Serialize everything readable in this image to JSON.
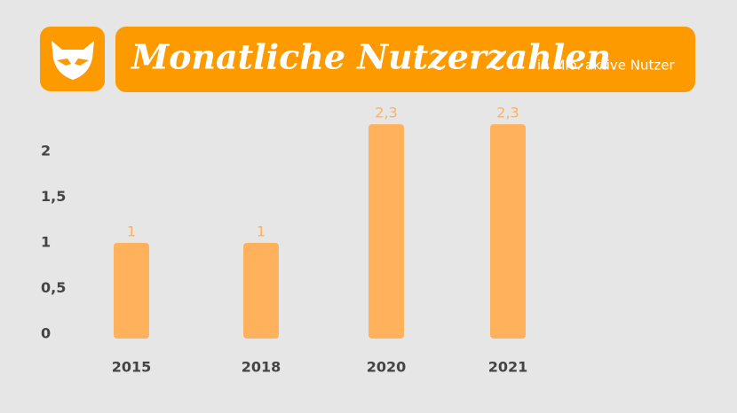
{
  "chart_data": {
    "type": "bar",
    "title": "Monatliche Nutzerzahlen",
    "subtitle": "in Mio. aktive Nutzer",
    "categories": [
      "2015",
      "2018",
      "2020",
      "2021"
    ],
    "values": [
      1,
      1,
      2.3,
      2.3
    ],
    "value_labels": [
      "1",
      "1",
      "2,3",
      "2,3"
    ],
    "color": "#ffb15c",
    "ylim": [
      0,
      2
    ],
    "yticks": [
      0,
      {
        "value": 0.5,
        "label": "0,5"
      },
      1,
      {
        "value": 1.5,
        "label": "1,5"
      },
      2
    ],
    "grid": false
  }
}
